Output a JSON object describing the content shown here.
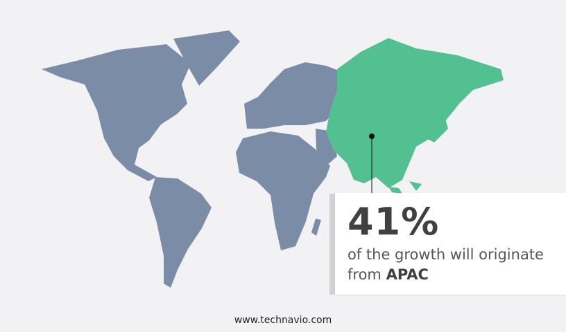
{
  "colors": {
    "background": "#f2f2f4",
    "map_default": "#7a8ca6",
    "highlight": "#52c090",
    "text": "#404040"
  },
  "map": {
    "highlighted_region": "APAC"
  },
  "callout": {
    "percent": "41%",
    "text": "of the growth will originate from",
    "region": "APAC"
  },
  "footer": {
    "website": "www.technavio.com"
  }
}
